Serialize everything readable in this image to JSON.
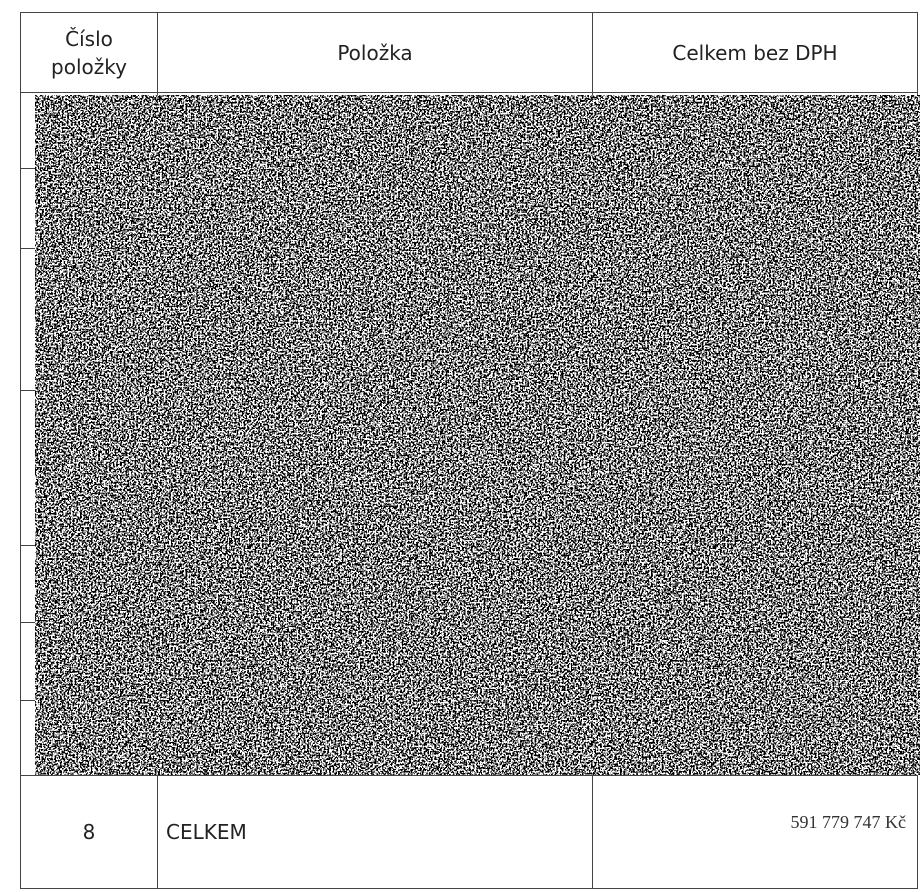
{
  "table": {
    "header": [
      "Číslo\npoložky",
      "Položka",
      "Celkem bez DPH"
    ],
    "rows": [
      [
        "8",
        "CELKEM",
        "591 779 747 Kč"
      ]
    ]
  }
}
